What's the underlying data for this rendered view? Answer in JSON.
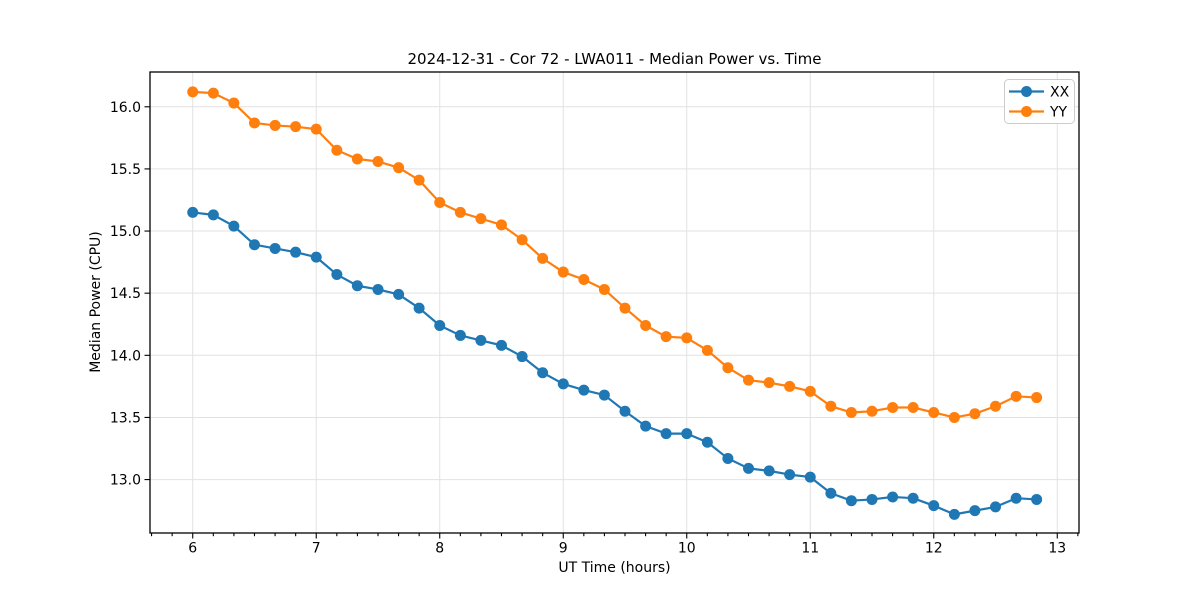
{
  "chart_data": {
    "type": "line",
    "title": "2024-12-31 - Cor 72 - LWA011 - Median Power vs. Time",
    "xlabel": "UT Time (hours)",
    "ylabel": "Median Power (CPU)",
    "xlim": [
      5.654,
      13.176
    ],
    "ylim": [
      12.57,
      16.28
    ],
    "xticks": [
      6,
      7,
      8,
      9,
      10,
      11,
      12,
      13
    ],
    "yticks": [
      13.0,
      13.5,
      14.0,
      14.5,
      15.0,
      15.5,
      16.0
    ],
    "minor_xtick_step": 0.1666667,
    "grid": true,
    "legend_position": "upper right",
    "colors": {
      "grid": "#e2e2e2",
      "spine": "#000000",
      "tick": "#000000",
      "legend_border": "#cccccc",
      "legend_bg": "#ffffff"
    },
    "x": [
      6.0,
      6.167,
      6.333,
      6.5,
      6.667,
      6.833,
      7.0,
      7.167,
      7.333,
      7.5,
      7.667,
      7.833,
      8.0,
      8.167,
      8.333,
      8.5,
      8.667,
      8.833,
      9.0,
      9.167,
      9.333,
      9.5,
      9.667,
      9.833,
      10.0,
      10.167,
      10.333,
      10.5,
      10.667,
      10.833,
      11.0,
      11.167,
      11.333,
      11.5,
      11.667,
      11.833,
      12.0,
      12.167,
      12.333,
      12.5,
      12.667,
      12.833
    ],
    "series": [
      {
        "name": "XX",
        "color": "#1f77b4",
        "values": [
          15.15,
          15.13,
          15.04,
          14.89,
          14.86,
          14.83,
          14.79,
          14.65,
          14.56,
          14.53,
          14.49,
          14.38,
          14.24,
          14.16,
          14.12,
          14.08,
          13.99,
          13.86,
          13.77,
          13.72,
          13.68,
          13.55,
          13.43,
          13.37,
          13.37,
          13.3,
          13.17,
          13.09,
          13.07,
          13.04,
          13.02,
          12.89,
          12.83,
          12.84,
          12.86,
          12.85,
          12.79,
          12.72,
          12.75,
          12.78,
          12.85,
          12.84
        ]
      },
      {
        "name": "YY",
        "color": "#ff7f0e",
        "values": [
          16.12,
          16.11,
          16.03,
          15.87,
          15.85,
          15.84,
          15.82,
          15.65,
          15.58,
          15.56,
          15.51,
          15.41,
          15.23,
          15.15,
          15.1,
          15.05,
          14.93,
          14.78,
          14.67,
          14.61,
          14.53,
          14.38,
          14.24,
          14.15,
          14.14,
          14.04,
          13.9,
          13.8,
          13.78,
          13.75,
          13.71,
          13.59,
          13.54,
          13.55,
          13.58,
          13.58,
          13.54,
          13.5,
          13.53,
          13.59,
          13.67,
          13.66
        ]
      }
    ]
  }
}
